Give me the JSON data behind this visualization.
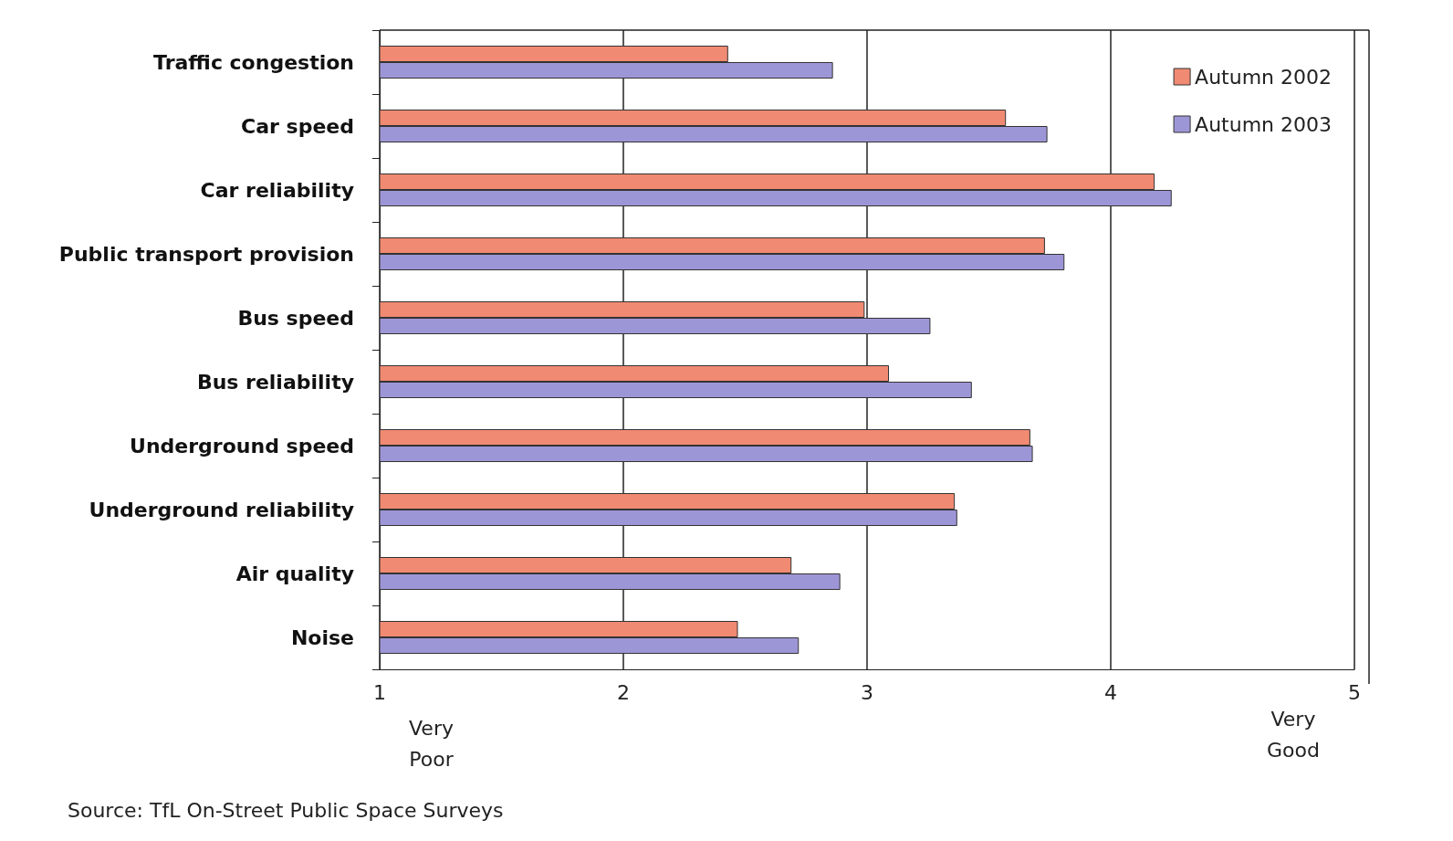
{
  "chart_data": {
    "type": "bar",
    "orientation": "horizontal",
    "categories": [
      "Traffic congestion",
      "Car speed",
      "Car reliability",
      "Public transport provision",
      "Bus speed",
      "Bus reliability",
      "Underground speed",
      "Underground reliability",
      "Air quality",
      "Noise"
    ],
    "series": [
      {
        "name": "Autumn 2002",
        "color": "#f08a72",
        "values": [
          2.43,
          3.57,
          4.18,
          3.73,
          2.99,
          3.09,
          3.67,
          3.36,
          2.69,
          2.47
        ]
      },
      {
        "name": "Autumn 2003",
        "color": "#9d96d6",
        "values": [
          2.86,
          3.74,
          4.25,
          3.81,
          3.26,
          3.43,
          3.68,
          3.37,
          2.89,
          2.72
        ]
      }
    ],
    "xlim": [
      1,
      5
    ],
    "xticks": [
      1,
      2,
      3,
      4,
      5
    ],
    "grid": "x",
    "legend": "top right",
    "annotations": [
      "Very Poor",
      "Very Good",
      "Source: TfL On-Street Public Space Surveys"
    ]
  }
}
